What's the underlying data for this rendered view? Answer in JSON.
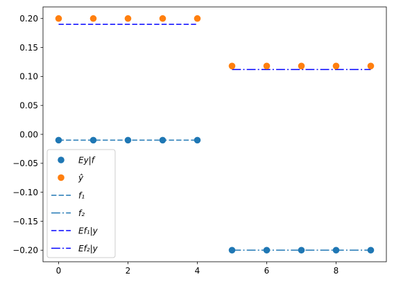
{
  "chart_data": {
    "type": "scatter",
    "title": "",
    "xlabel": "",
    "ylabel": "",
    "xlim": [
      -0.45,
      9.45
    ],
    "ylim": [
      -0.22,
      0.22
    ],
    "xticks": [
      0,
      2,
      4,
      6,
      8
    ],
    "yticks": [
      0.2,
      0.15,
      0.1,
      0.05,
      0.0,
      -0.05,
      -0.1,
      -0.15,
      -0.2
    ],
    "xtick_labels": [
      "0",
      "2",
      "4",
      "6",
      "8"
    ],
    "ytick_labels": [
      "0.20",
      "0.15",
      "0.10",
      "0.05",
      "0.00",
      "−0.05",
      "−0.10",
      "−0.15",
      "−0.20"
    ],
    "grid": false,
    "legend_position": "lower-left",
    "scatter_series": [
      {
        "name": "Ey|f",
        "color": "#1f77b4",
        "x": [
          0,
          1,
          2,
          3,
          4,
          5,
          6,
          7,
          8,
          9
        ],
        "y": [
          -0.01,
          -0.01,
          -0.01,
          -0.01,
          -0.01,
          -0.2,
          -0.2,
          -0.2,
          -0.2,
          -0.2
        ]
      },
      {
        "name": "ŷ",
        "color": "#ff7f0e",
        "x": [
          0,
          1,
          2,
          3,
          4,
          5,
          6,
          7,
          8,
          9
        ],
        "y": [
          0.2,
          0.2,
          0.2,
          0.2,
          0.2,
          0.118,
          0.118,
          0.118,
          0.118,
          0.118
        ]
      }
    ],
    "line_series": [
      {
        "name": "f₁",
        "color": "#1f77b4",
        "dash": "dashed",
        "x": [
          0,
          4
        ],
        "y": [
          -0.01,
          -0.01
        ]
      },
      {
        "name": "f₂",
        "color": "#1f77b4",
        "dash": "dashdot",
        "x": [
          5,
          9
        ],
        "y": [
          -0.2,
          -0.2
        ]
      },
      {
        "name": "Ef₁|y",
        "color": "#0000ff",
        "dash": "dashed",
        "x": [
          0,
          4
        ],
        "y": [
          0.19,
          0.19
        ]
      },
      {
        "name": "Ef₂|y",
        "color": "#0000ff",
        "dash": "dashdot",
        "x": [
          5,
          9
        ],
        "y": [
          0.112,
          0.112
        ]
      }
    ],
    "legend": [
      {
        "label": "Ey|f",
        "kind": "marker",
        "color": "#1f77b4"
      },
      {
        "label": "ŷ",
        "kind": "marker",
        "color": "#ff7f0e"
      },
      {
        "label": "f₁",
        "kind": "line",
        "color": "#1f77b4",
        "dash": "dashed"
      },
      {
        "label": "f₂",
        "kind": "line",
        "color": "#1f77b4",
        "dash": "dashdot"
      },
      {
        "label": "Ef₁|y",
        "kind": "line",
        "color": "#0000ff",
        "dash": "dashed"
      },
      {
        "label": "Ef₂|y",
        "kind": "line",
        "color": "#0000ff",
        "dash": "dashdot"
      }
    ]
  }
}
